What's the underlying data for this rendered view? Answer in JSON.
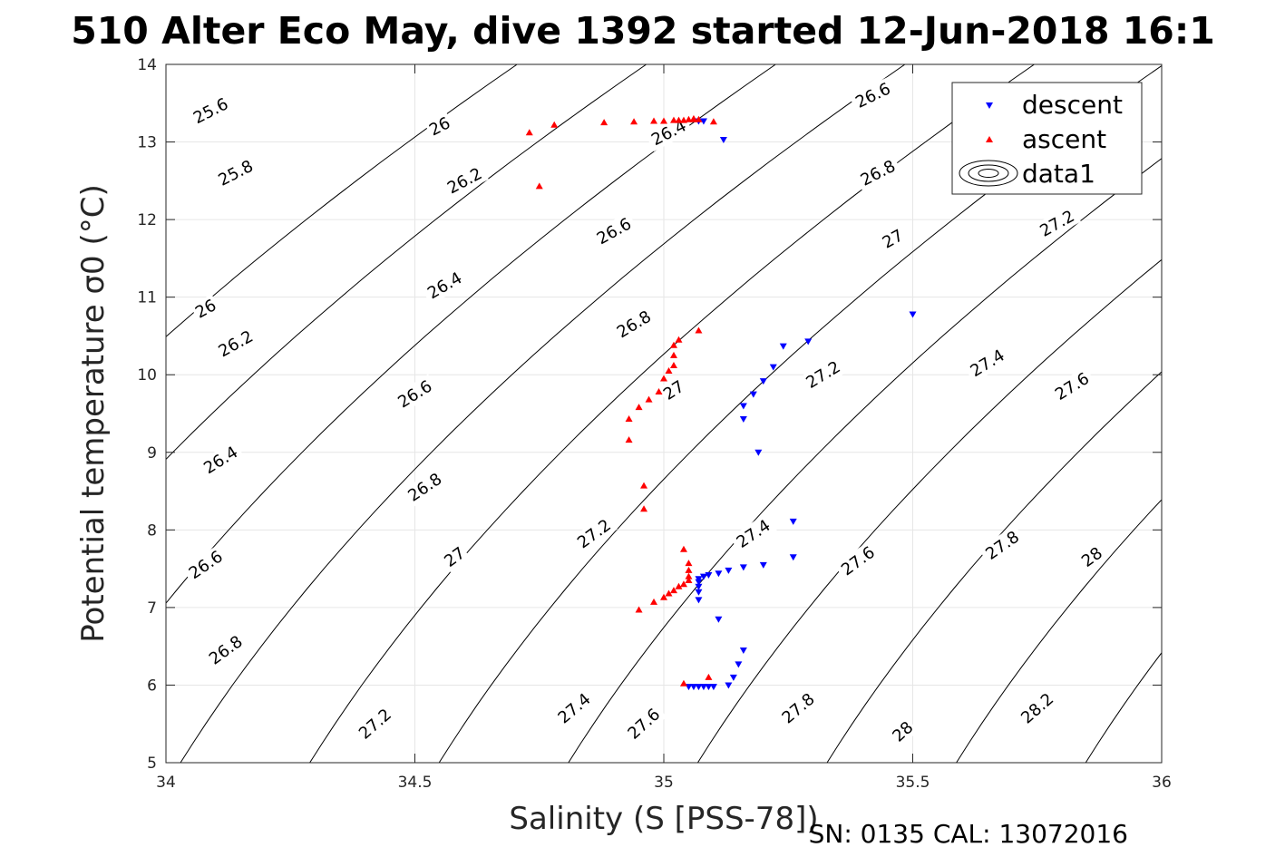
{
  "chart_data": {
    "type": "scatter",
    "title": "510 Alter Eco May, dive 1392 started 12-Jun-2018 16:1",
    "xlabel": "Salinity (S [PSS-78])",
    "ylabel": "Potential temperature σ0 (°C)",
    "footer": "SN: 0135  CAL: 13072016",
    "xlim": [
      34,
      36
    ],
    "ylim": [
      5,
      14
    ],
    "xticks": [
      34,
      34.5,
      35,
      35.5,
      36
    ],
    "xtick_labels": [
      "34",
      "34.5",
      "35",
      "35.5",
      "36"
    ],
    "yticks": [
      5,
      6,
      7,
      8,
      9,
      10,
      11,
      12,
      13,
      14
    ],
    "ytick_labels": [
      "5",
      "6",
      "7",
      "8",
      "9",
      "10",
      "11",
      "12",
      "13",
      "14"
    ],
    "grid": true,
    "legend_position": "top-right",
    "legend": [
      "descent",
      "ascent",
      "data1"
    ],
    "contour_levels": [
      25.6,
      25.8,
      26.0,
      26.2,
      26.4,
      26.6,
      26.8,
      27.0,
      27.2,
      27.4,
      27.6,
      27.8,
      28.0,
      28.2
    ],
    "contour_labels": [
      {
        "text": "25.6",
        "s": 34.09,
        "t": 13.4,
        "angle": -27
      },
      {
        "text": "25.8",
        "s": 34.14,
        "t": 12.6,
        "angle": -27
      },
      {
        "text": "26",
        "s": 34.08,
        "t": 10.85,
        "angle": -29
      },
      {
        "text": "26.2",
        "s": 34.14,
        "t": 10.4,
        "angle": -29
      },
      {
        "text": "26.4",
        "s": 34.11,
        "t": 8.9,
        "angle": -32
      },
      {
        "text": "26.6",
        "s": 34.08,
        "t": 7.55,
        "angle": -34
      },
      {
        "text": "26.8",
        "s": 34.12,
        "t": 6.45,
        "angle": -36
      },
      {
        "text": "26",
        "s": 34.55,
        "t": 13.2,
        "angle": -27
      },
      {
        "text": "26.2",
        "s": 34.6,
        "t": 12.5,
        "angle": -28
      },
      {
        "text": "26.4",
        "s": 34.56,
        "t": 11.15,
        "angle": -30
      },
      {
        "text": "26.6",
        "s": 34.5,
        "t": 9.75,
        "angle": -32
      },
      {
        "text": "26.8",
        "s": 34.52,
        "t": 8.55,
        "angle": -34
      },
      {
        "text": "27",
        "s": 34.58,
        "t": 7.65,
        "angle": -36
      },
      {
        "text": "26.4",
        "s": 35.01,
        "t": 13.12,
        "angle": -27
      },
      {
        "text": "26.6",
        "s": 34.9,
        "t": 11.85,
        "angle": -29
      },
      {
        "text": "26.8",
        "s": 34.94,
        "t": 10.65,
        "angle": -31
      },
      {
        "text": "27",
        "s": 35.02,
        "t": 9.8,
        "angle": -33
      },
      {
        "text": "27.2",
        "s": 34.86,
        "t": 7.95,
        "angle": -36
      },
      {
        "text": "27.4",
        "s": 34.82,
        "t": 5.7,
        "angle": -40
      },
      {
        "text": "27.2",
        "s": 34.42,
        "t": 5.5,
        "angle": -41
      },
      {
        "text": "27.6",
        "s": 34.96,
        "t": 5.5,
        "angle": -42
      },
      {
        "text": "26.6",
        "s": 35.42,
        "t": 13.6,
        "angle": -26
      },
      {
        "text": "26.8",
        "s": 35.43,
        "t": 12.6,
        "angle": -27
      },
      {
        "text": "27",
        "s": 35.46,
        "t": 11.75,
        "angle": -29
      },
      {
        "text": "27.2",
        "s": 35.32,
        "t": 10.0,
        "angle": -31
      },
      {
        "text": "27.4",
        "s": 35.18,
        "t": 7.95,
        "angle": -34
      },
      {
        "text": "27.6",
        "s": 35.39,
        "t": 7.6,
        "angle": -36
      },
      {
        "text": "27.8",
        "s": 35.27,
        "t": 5.7,
        "angle": -40
      },
      {
        "text": "28",
        "s": 35.48,
        "t": 5.4,
        "angle": -42
      },
      {
        "text": "27.2",
        "s": 35.79,
        "t": 11.95,
        "angle": -29
      },
      {
        "text": "27.4",
        "s": 35.65,
        "t": 10.15,
        "angle": -31
      },
      {
        "text": "27.6",
        "s": 35.82,
        "t": 9.85,
        "angle": -32
      },
      {
        "text": "27.8",
        "s": 35.68,
        "t": 7.8,
        "angle": -35
      },
      {
        "text": "28",
        "s": 35.86,
        "t": 7.65,
        "angle": -36
      },
      {
        "text": "28.2",
        "s": 35.75,
        "t": 5.7,
        "angle": -41
      }
    ],
    "series": [
      {
        "name": "descent",
        "marker": "triangle-down",
        "color": "#0000ff",
        "points": [
          [
            35.5,
            10.78
          ],
          [
            35.29,
            10.43
          ],
          [
            35.24,
            10.37
          ],
          [
            35.22,
            10.1
          ],
          [
            35.2,
            9.92
          ],
          [
            35.18,
            9.75
          ],
          [
            35.16,
            9.6
          ],
          [
            35.16,
            9.43
          ],
          [
            35.19,
            9.0
          ],
          [
            35.26,
            8.11
          ],
          [
            35.26,
            7.65
          ],
          [
            35.2,
            7.55
          ],
          [
            35.16,
            7.52
          ],
          [
            35.13,
            7.48
          ],
          [
            35.11,
            7.44
          ],
          [
            35.09,
            7.42
          ],
          [
            35.08,
            7.4
          ],
          [
            35.07,
            7.37
          ],
          [
            35.07,
            7.33
          ],
          [
            35.07,
            7.27
          ],
          [
            35.07,
            7.2
          ],
          [
            35.07,
            7.1
          ],
          [
            35.11,
            6.85
          ],
          [
            35.16,
            6.45
          ],
          [
            35.15,
            6.27
          ],
          [
            35.14,
            6.1
          ],
          [
            35.13,
            6.0
          ],
          [
            35.1,
            5.98
          ],
          [
            35.09,
            5.98
          ],
          [
            35.08,
            5.98
          ],
          [
            35.07,
            5.98
          ],
          [
            35.06,
            5.98
          ],
          [
            35.05,
            5.98
          ],
          [
            35.07,
            13.27
          ],
          [
            35.08,
            13.27
          ],
          [
            35.12,
            13.03
          ]
        ]
      },
      {
        "name": "ascent",
        "marker": "triangle-up",
        "color": "#ff0000",
        "points": [
          [
            34.73,
            13.12
          ],
          [
            34.78,
            13.22
          ],
          [
            34.88,
            13.25
          ],
          [
            34.94,
            13.26
          ],
          [
            34.98,
            13.27
          ],
          [
            35.0,
            13.27
          ],
          [
            35.02,
            13.28
          ],
          [
            35.03,
            13.28
          ],
          [
            35.04,
            13.28
          ],
          [
            35.05,
            13.29
          ],
          [
            35.06,
            13.29
          ],
          [
            35.07,
            13.29
          ],
          [
            35.06,
            13.3
          ],
          [
            35.1,
            13.26
          ],
          [
            34.75,
            12.43
          ],
          [
            35.07,
            10.57
          ],
          [
            35.03,
            10.45
          ],
          [
            35.02,
            10.38
          ],
          [
            35.02,
            10.25
          ],
          [
            35.02,
            10.12
          ],
          [
            35.01,
            10.05
          ],
          [
            35.0,
            9.95
          ],
          [
            34.99,
            9.78
          ],
          [
            34.97,
            9.68
          ],
          [
            34.95,
            9.58
          ],
          [
            34.93,
            9.43
          ],
          [
            34.93,
            9.16
          ],
          [
            34.96,
            8.57
          ],
          [
            34.96,
            8.27
          ],
          [
            35.04,
            7.75
          ],
          [
            35.05,
            7.57
          ],
          [
            35.05,
            7.48
          ],
          [
            35.05,
            7.4
          ],
          [
            35.05,
            7.35
          ],
          [
            35.04,
            7.3
          ],
          [
            35.03,
            7.27
          ],
          [
            35.02,
            7.22
          ],
          [
            35.01,
            7.18
          ],
          [
            35.0,
            7.13
          ],
          [
            34.98,
            7.07
          ],
          [
            34.95,
            6.97
          ],
          [
            35.04,
            6.02
          ],
          [
            35.09,
            6.1
          ]
        ]
      }
    ]
  }
}
